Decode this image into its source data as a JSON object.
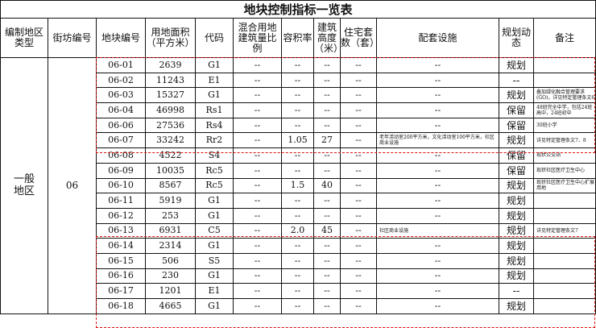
{
  "title": "地块控制指标一览表",
  "headers": [
    "编制地区类型",
    "街坊编号",
    "地块编号",
    "用地面积（平方米）",
    "代码",
    "混合用地建筑量比例",
    "容积率",
    "建筑高度（米）",
    "住宅套数（套）",
    "配套设施",
    "规划动态",
    "备注"
  ],
  "region_type": "一般地区",
  "block_no": "06",
  "rows": [
    {
      "id": "06-01",
      "area": "2639",
      "code": "G1",
      "mix": "--",
      "far": "--",
      "height": "--",
      "units": "--",
      "facilities": "--",
      "status": "规划",
      "note": ""
    },
    {
      "id": "06-02",
      "area": "11243",
      "code": "E1",
      "mix": "--",
      "far": "--",
      "height": "--",
      "units": "--",
      "facilities": "--",
      "status": "--",
      "note": ""
    },
    {
      "id": "06-03",
      "area": "15327",
      "code": "G1",
      "mix": "--",
      "far": "--",
      "height": "--",
      "units": "--",
      "facilities": "--",
      "status": "规划",
      "note": "叠加绿化融合管理要求(GO)，详见特定管理条文6"
    },
    {
      "id": "06-04",
      "area": "46998",
      "code": "Rs1",
      "mix": "--",
      "far": "--",
      "height": "--",
      "units": "--",
      "facilities": "--",
      "status": "保留",
      "note": "48班完全中学，包括24班高中，24班初中"
    },
    {
      "id": "06-06",
      "area": "27536",
      "code": "Rs4",
      "mix": "--",
      "far": "--",
      "height": "--",
      "units": "--",
      "facilities": "--",
      "status": "保留",
      "note": "30班小学"
    },
    {
      "id": "06-07",
      "area": "33242",
      "code": "Rr2",
      "mix": "--",
      "far": "1.05",
      "height": "27",
      "units": "--",
      "facilities": "老年活动室200平方米，文化活动室100平方米，社区商业设施",
      "status": "规划",
      "note": "详见特定管理条文7、8"
    },
    {
      "id": "06-08",
      "area": "4522",
      "code": "S4",
      "mix": "--",
      "far": "--",
      "height": "--",
      "units": "--",
      "facilities": "--",
      "status": "保留",
      "note": "现状公交站"
    },
    {
      "id": "06-09",
      "area": "10035",
      "code": "Rc5",
      "mix": "--",
      "far": "--",
      "height": "--",
      "units": "--",
      "facilities": "--",
      "status": "保留",
      "note": "现状社区医疗卫生中心"
    },
    {
      "id": "06-10",
      "area": "8567",
      "code": "Rc5",
      "mix": "--",
      "far": "1.5",
      "height": "40",
      "units": "--",
      "facilities": "--",
      "status": "规划",
      "note": "现状社区医疗卫生中心扩展用地"
    },
    {
      "id": "06-11",
      "area": "5919",
      "code": "G1",
      "mix": "--",
      "far": "--",
      "height": "--",
      "units": "--",
      "facilities": "--",
      "status": "规划",
      "note": ""
    },
    {
      "id": "06-12",
      "area": "253",
      "code": "G1",
      "mix": "--",
      "far": "--",
      "height": "--",
      "units": "--",
      "facilities": "--",
      "status": "规划",
      "note": ""
    },
    {
      "id": "06-13",
      "area": "6931",
      "code": "C5",
      "mix": "--",
      "far": "2.0",
      "height": "45",
      "units": "--",
      "facilities": "社区商业设施",
      "status": "规划",
      "note": "详见特定管理条文7"
    },
    {
      "id": "06-14",
      "area": "2314",
      "code": "G1",
      "mix": "--",
      "far": "--",
      "height": "--",
      "units": "--",
      "facilities": "--",
      "status": "规划",
      "note": ""
    },
    {
      "id": "06-15",
      "area": "506",
      "code": "S5",
      "mix": "--",
      "far": "--",
      "height": "--",
      "units": "--",
      "facilities": "--",
      "status": "规划",
      "note": ""
    },
    {
      "id": "06-16",
      "area": "230",
      "code": "G1",
      "mix": "--",
      "far": "--",
      "height": "--",
      "units": "--",
      "facilities": "--",
      "status": "规划",
      "note": ""
    },
    {
      "id": "06-17",
      "area": "1201",
      "code": "E1",
      "mix": "--",
      "far": "--",
      "height": "--",
      "units": "--",
      "facilities": "--",
      "status": "--",
      "note": ""
    },
    {
      "id": "06-18",
      "area": "4665",
      "code": "G1",
      "mix": "--",
      "far": "--",
      "height": "--",
      "units": "--",
      "facilities": "--",
      "status": "规划",
      "note": ""
    }
  ],
  "colors": {
    "highlight_border": "#dd1111",
    "grid": "#111111"
  }
}
